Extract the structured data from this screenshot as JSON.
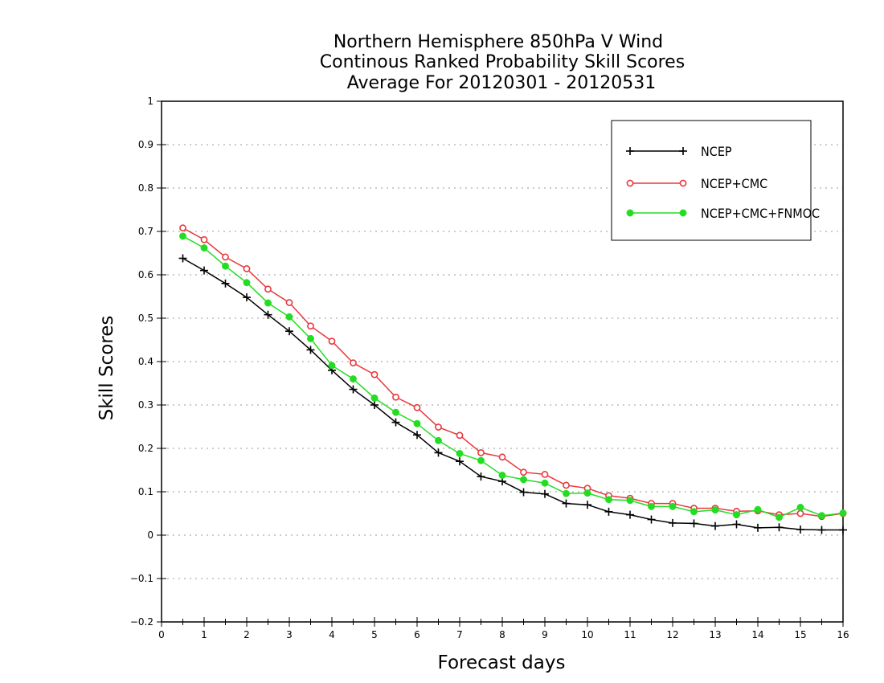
{
  "chart_data": {
    "type": "line",
    "title_lines": [
      "Northern Hemisphere 850hPa V Wind",
      "Continous Ranked Probability Skill Scores",
      "Average For 20120301 - 20120531"
    ],
    "xlabel": "Forecast days",
    "ylabel": "Skill Scores",
    "xlim": [
      0,
      16
    ],
    "ylim": [
      -0.2,
      1
    ],
    "xticks": [
      0,
      1,
      2,
      3,
      4,
      5,
      6,
      7,
      8,
      9,
      10,
      11,
      12,
      13,
      14,
      15,
      16
    ],
    "yticks": [
      -0.2,
      -0.1,
      0,
      0.1,
      0.2,
      0.3,
      0.4,
      0.5,
      0.6,
      0.7,
      0.8,
      0.9,
      1
    ],
    "ytick_labels": [
      "-0.2",
      "-0.1",
      "0",
      "0.1",
      "0.2",
      "0.3",
      "0.4",
      "0.5",
      "0.6",
      "0.7",
      "0.8",
      "0.9",
      "1"
    ],
    "grid": "horizontal dotted",
    "legend_position": "top-right",
    "x": [
      0.5,
      1.0,
      1.5,
      2.0,
      2.5,
      3.0,
      3.5,
      4.0,
      4.5,
      5.0,
      5.5,
      6.0,
      6.5,
      7.0,
      7.5,
      8.0,
      8.5,
      9.0,
      9.5,
      10.0,
      10.5,
      11.0,
      11.5,
      12.0,
      12.5,
      13.0,
      13.5,
      14.0,
      14.5,
      15.0,
      15.5,
      16.0
    ],
    "series": [
      {
        "name": "NCEP",
        "color": "#000000",
        "marker": "plus",
        "values": [
          0.638,
          0.61,
          0.58,
          0.548,
          0.508,
          0.47,
          0.427,
          0.38,
          0.336,
          0.3,
          0.26,
          0.231,
          0.19,
          0.17,
          0.135,
          0.124,
          0.099,
          0.095,
          0.073,
          0.07,
          0.054,
          0.047,
          0.036,
          0.028,
          0.027,
          0.021,
          0.025,
          0.017,
          0.018,
          0.013,
          0.012,
          0.012
        ]
      },
      {
        "name": "NCEP+CMC",
        "color": "#e8383d",
        "marker": "open-circle",
        "values": [
          0.708,
          0.681,
          0.641,
          0.614,
          0.567,
          0.536,
          0.482,
          0.447,
          0.397,
          0.37,
          0.318,
          0.294,
          0.249,
          0.23,
          0.19,
          0.18,
          0.145,
          0.14,
          0.115,
          0.108,
          0.091,
          0.085,
          0.073,
          0.073,
          0.062,
          0.062,
          0.055,
          0.056,
          0.047,
          0.05,
          0.043,
          0.05
        ]
      },
      {
        "name": "NCEP+CMC+FNMOC",
        "color": "#22dd22",
        "marker": "filled-circle",
        "values": [
          0.689,
          0.662,
          0.62,
          0.582,
          0.535,
          0.503,
          0.453,
          0.391,
          0.36,
          0.316,
          0.283,
          0.257,
          0.218,
          0.188,
          0.172,
          0.138,
          0.128,
          0.12,
          0.096,
          0.097,
          0.082,
          0.08,
          0.066,
          0.066,
          0.054,
          0.058,
          0.047,
          0.059,
          0.041,
          0.064,
          0.045,
          0.051
        ]
      }
    ]
  }
}
